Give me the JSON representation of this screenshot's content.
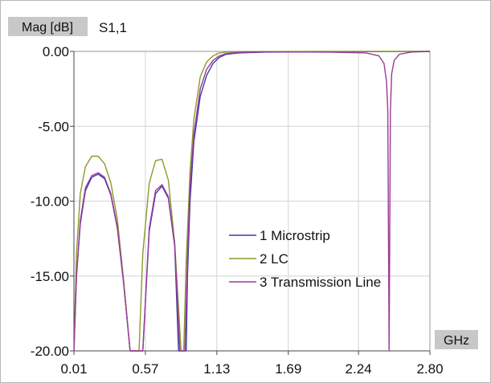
{
  "chart_data": {
    "type": "line",
    "title": "S1,1",
    "ylabel": "Mag [dB]",
    "xlabel": "GHz",
    "xlim": [
      0.01,
      2.8
    ],
    "ylim": [
      -20,
      0
    ],
    "x_ticks": [
      "0.01",
      "0.57",
      "1.13",
      "1.69",
      "2.24",
      "2.80"
    ],
    "y_ticks": [
      "0.00",
      "-5.00",
      "-10.00",
      "-15.00",
      "-20.00"
    ],
    "grid": true,
    "legend_position": "center-right",
    "series": [
      {
        "name": "1 Microstrip",
        "color": "#3b3ba8",
        "x": [
          0.01,
          0.03,
          0.06,
          0.1,
          0.15,
          0.2,
          0.25,
          0.3,
          0.35,
          0.4,
          0.45,
          0.5,
          0.53,
          0.55,
          0.6,
          0.65,
          0.7,
          0.75,
          0.8,
          0.83,
          0.85,
          0.87,
          0.89,
          0.9,
          0.92,
          0.95,
          1.0,
          1.05,
          1.1,
          1.15,
          1.2,
          1.3,
          1.5,
          2.0,
          2.8
        ],
        "y": [
          -20,
          -15,
          -11.5,
          -9.3,
          -8.4,
          -8.2,
          -8.5,
          -9.6,
          -11.8,
          -15.5,
          -20,
          -20,
          -20,
          -20,
          -12,
          -9.5,
          -9.0,
          -9.8,
          -13,
          -20,
          -20,
          -20,
          -20,
          -15,
          -10,
          -6,
          -3,
          -1.6,
          -0.8,
          -0.4,
          -0.2,
          -0.1,
          -0.05,
          -0.02,
          0
        ]
      },
      {
        "name": "2 LC",
        "color": "#8c9a2a",
        "x": [
          0.01,
          0.03,
          0.06,
          0.1,
          0.15,
          0.2,
          0.25,
          0.3,
          0.35,
          0.4,
          0.45,
          0.49,
          0.52,
          0.55,
          0.6,
          0.65,
          0.7,
          0.75,
          0.8,
          0.85,
          0.87,
          0.89,
          0.92,
          0.95,
          1.0,
          1.05,
          1.1,
          1.15,
          1.2,
          1.3,
          1.5,
          2.0,
          2.8
        ],
        "y": [
          -20,
          -13.5,
          -9.5,
          -7.7,
          -7.0,
          -7.0,
          -7.5,
          -8.8,
          -11.2,
          -15.3,
          -20,
          -20,
          -20,
          -13.5,
          -8.8,
          -7.3,
          -7.2,
          -8.6,
          -12.8,
          -20,
          -20,
          -14,
          -8,
          -4.5,
          -1.7,
          -0.7,
          -0.3,
          -0.1,
          -0.05,
          -0.02,
          -0.01,
          0,
          0
        ]
      },
      {
        "name": "3 Transmission Line",
        "color": "#9a3a9a",
        "x": [
          0.01,
          0.03,
          0.06,
          0.1,
          0.15,
          0.2,
          0.25,
          0.3,
          0.35,
          0.4,
          0.45,
          0.5,
          0.53,
          0.55,
          0.6,
          0.65,
          0.7,
          0.75,
          0.8,
          0.84,
          0.86,
          0.88,
          0.9,
          0.92,
          0.95,
          1.0,
          1.05,
          1.1,
          1.15,
          1.2,
          1.3,
          1.5,
          2.0,
          2.3,
          2.4,
          2.44,
          2.46,
          2.47,
          2.48,
          2.49,
          2.5,
          2.52,
          2.56,
          2.65,
          2.8
        ],
        "y": [
          -20,
          -15,
          -11.3,
          -9.1,
          -8.3,
          -8.1,
          -8.4,
          -9.5,
          -11.7,
          -15.5,
          -20,
          -20,
          -20,
          -20,
          -11.8,
          -9.3,
          -8.9,
          -9.7,
          -12.9,
          -20,
          -20,
          -20,
          -13.8,
          -9,
          -5.5,
          -2.5,
          -1.2,
          -0.6,
          -0.3,
          -0.15,
          -0.07,
          -0.03,
          -0.05,
          -0.1,
          -0.3,
          -0.8,
          -2,
          -4,
          -20,
          -4,
          -1.5,
          -0.6,
          -0.2,
          -0.05,
          0
        ]
      }
    ]
  }
}
